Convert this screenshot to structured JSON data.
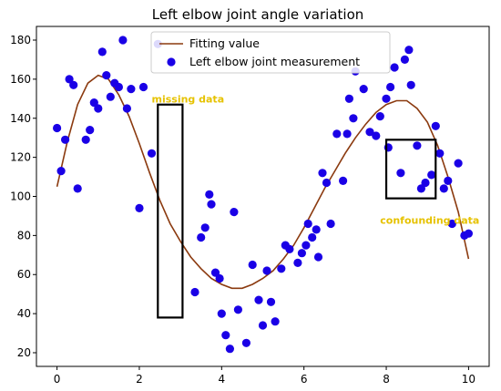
{
  "chart_data": {
    "type": "scatter",
    "title": "Left elbow joint angle variation",
    "xlabel": "",
    "ylabel": "",
    "xlim": [
      -0.5,
      10.5
    ],
    "ylim": [
      13,
      187
    ],
    "x_ticks": [
      0,
      2,
      4,
      6,
      8,
      10
    ],
    "y_ticks": [
      20,
      40,
      60,
      80,
      100,
      120,
      140,
      160,
      180
    ],
    "grid": false,
    "legend_position": "top-center",
    "series": [
      {
        "name": "Fitting value",
        "kind": "line",
        "color": "#8b3a0f",
        "x": [
          0,
          0.25,
          0.5,
          0.75,
          1.0,
          1.25,
          1.5,
          1.75,
          2.0,
          2.25,
          2.5,
          2.75,
          3.0,
          3.25,
          3.5,
          3.75,
          4.0,
          4.25,
          4.5,
          4.75,
          5.0,
          5.25,
          5.5,
          5.75,
          6.0,
          6.25,
          6.5,
          6.75,
          7.0,
          7.25,
          7.5,
          7.75,
          8.0,
          8.25,
          8.5,
          8.75,
          9.0,
          9.25,
          9.5,
          9.75,
          10.0
        ],
        "y": [
          105,
          128,
          147,
          158,
          162,
          160,
          152,
          141,
          127,
          112,
          98,
          86,
          77,
          69,
          63,
          58,
          55,
          53,
          53,
          55,
          58,
          62,
          68,
          75,
          84,
          94,
          104,
          113,
          122,
          130,
          137,
          143,
          147,
          149,
          149,
          145,
          138,
          126,
          110,
          92,
          68
        ]
      },
      {
        "name": "Left elbow joint measurement",
        "kind": "scatter",
        "color": "#1a00e6",
        "points": [
          [
            0.0,
            135
          ],
          [
            0.1,
            113
          ],
          [
            0.2,
            129
          ],
          [
            0.3,
            160
          ],
          [
            0.4,
            157
          ],
          [
            0.5,
            104
          ],
          [
            0.7,
            129
          ],
          [
            0.8,
            134
          ],
          [
            0.9,
            148
          ],
          [
            1.0,
            145
          ],
          [
            1.1,
            174
          ],
          [
            1.2,
            162
          ],
          [
            1.3,
            151
          ],
          [
            1.4,
            158
          ],
          [
            1.5,
            156
          ],
          [
            1.6,
            180
          ],
          [
            1.7,
            145
          ],
          [
            1.8,
            155
          ],
          [
            2.0,
            94
          ],
          [
            2.1,
            156
          ],
          [
            2.3,
            122
          ],
          [
            2.45,
            178
          ],
          [
            3.35,
            51
          ],
          [
            3.5,
            79
          ],
          [
            3.6,
            84
          ],
          [
            3.7,
            101
          ],
          [
            3.75,
            96
          ],
          [
            3.85,
            61
          ],
          [
            3.95,
            58
          ],
          [
            4.0,
            40
          ],
          [
            4.1,
            29
          ],
          [
            4.2,
            22
          ],
          [
            4.3,
            92
          ],
          [
            4.4,
            42
          ],
          [
            4.6,
            25
          ],
          [
            4.75,
            65
          ],
          [
            4.9,
            47
          ],
          [
            5.0,
            34
          ],
          [
            5.1,
            62
          ],
          [
            5.2,
            46
          ],
          [
            5.3,
            36
          ],
          [
            5.45,
            63
          ],
          [
            5.55,
            75
          ],
          [
            5.65,
            73
          ],
          [
            5.85,
            66
          ],
          [
            5.95,
            71
          ],
          [
            6.05,
            75
          ],
          [
            6.1,
            86
          ],
          [
            6.2,
            79
          ],
          [
            6.3,
            83
          ],
          [
            6.35,
            69
          ],
          [
            6.45,
            112
          ],
          [
            6.55,
            107
          ],
          [
            6.65,
            86
          ],
          [
            6.8,
            132
          ],
          [
            6.95,
            108
          ],
          [
            7.05,
            132
          ],
          [
            7.1,
            150
          ],
          [
            7.2,
            140
          ],
          [
            7.25,
            164
          ],
          [
            7.45,
            155
          ],
          [
            7.6,
            133
          ],
          [
            7.75,
            131
          ],
          [
            7.85,
            141
          ],
          [
            8.0,
            150
          ],
          [
            8.1,
            156
          ],
          [
            8.2,
            166
          ],
          [
            8.05,
            125
          ],
          [
            8.35,
            112
          ],
          [
            8.45,
            170
          ],
          [
            8.55,
            175
          ],
          [
            8.6,
            157
          ],
          [
            8.75,
            126
          ],
          [
            8.85,
            104
          ],
          [
            8.95,
            107
          ],
          [
            9.1,
            111
          ],
          [
            9.2,
            136
          ],
          [
            9.3,
            122
          ],
          [
            9.4,
            104
          ],
          [
            9.5,
            108
          ],
          [
            9.6,
            86
          ],
          [
            9.75,
            117
          ],
          [
            9.9,
            80
          ],
          [
            10.0,
            81
          ]
        ]
      }
    ],
    "annotations": [
      {
        "label": "missing data",
        "color": "#e6c200",
        "box": {
          "x0": 2.45,
          "x1": 3.05,
          "y0": 38,
          "y1": 147
        },
        "label_pos": [
          2.3,
          148
        ]
      },
      {
        "label": "confounding data",
        "color": "#e6c200",
        "box": {
          "x0": 8.0,
          "x1": 9.2,
          "y0": 99,
          "y1": 129
        },
        "label_pos": [
          7.85,
          86
        ]
      }
    ]
  }
}
